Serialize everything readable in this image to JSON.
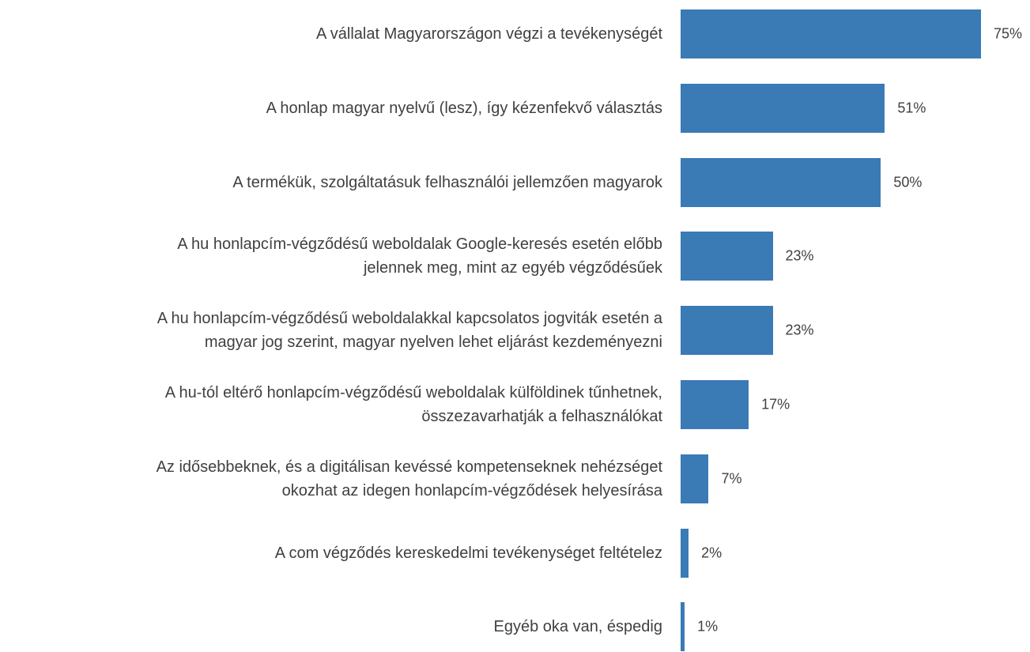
{
  "chart_data": {
    "type": "bar",
    "orientation": "horizontal",
    "color": "#3a7ab5",
    "categories": [
      "A vállalat Magyarországon végzi a tevékenységét",
      "A honlap magyar nyelvű (lesz), így kézenfekvő választás",
      "A termékük, szolgáltatásuk felhasználói jellemzően magyarok",
      "A  hu honlapcím-végződésű weboldalak Google-keresés esetén előbb\njelennek meg, mint az egyéb végződésűek",
      "A  hu honlapcím-végződésű weboldalakkal kapcsolatos jogviták esetén a\nmagyar jog szerint, magyar nyelven lehet eljárást kezdeményezni",
      "A  hu-tól eltérő honlapcím-végződésű weboldalak külföldinek tűnhetnek,\nösszezavarhatják a felhasználókat",
      "Az idősebbeknek, és a digitálisan kevéssé kompetenseknek nehézséget\nokozhat az idegen honlapcím-végződések helyesírása",
      "A  com végződés kereskedelmi tevékenységet feltételez",
      "Egyéb oka van, éspedig"
    ],
    "values": [
      75,
      51,
      50,
      23,
      23,
      17,
      7,
      2,
      1
    ],
    "value_labels": [
      "75%",
      "51%",
      "50%",
      "23%",
      "23%",
      "17%",
      "7%",
      "2%",
      "1%"
    ]
  }
}
